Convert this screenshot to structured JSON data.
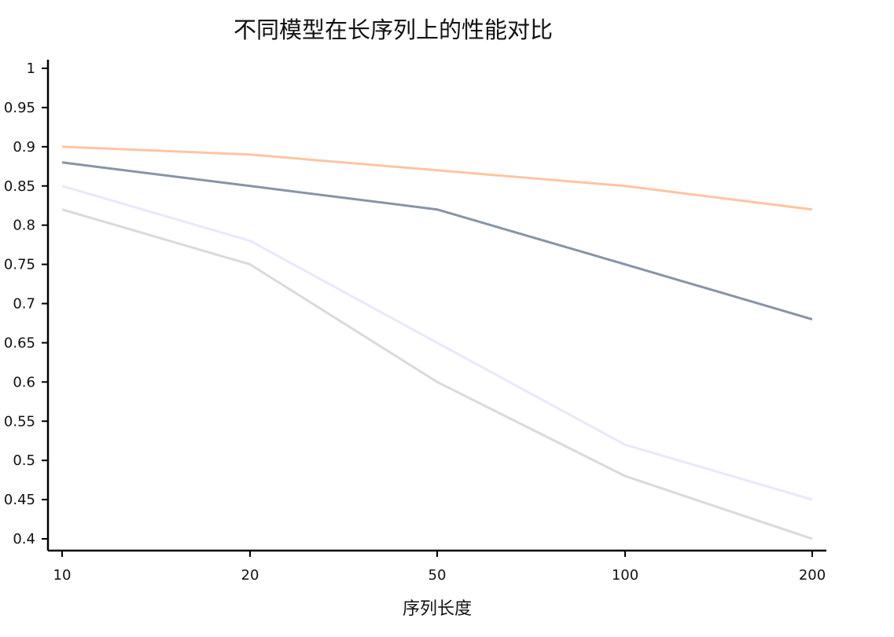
{
  "chart_data": {
    "type": "line",
    "title": "不同模型在长序列上的性能对比",
    "xlabel": "序列长度",
    "ylabel": "",
    "categories": [
      "10",
      "20",
      "50",
      "100",
      "200"
    ],
    "yticks": [
      "1",
      "0.95",
      "0.9",
      "0.85",
      "0.8",
      "0.75",
      "0.7",
      "0.65",
      "0.6",
      "0.55",
      "0.5",
      "0.45",
      "0.4"
    ],
    "ylim": [
      0.4,
      1.0
    ],
    "grid": false,
    "legend": "none",
    "series": [
      {
        "values": [
          0.9,
          0.89,
          0.87,
          0.85,
          0.82
        ],
        "color": "#ffc4a3"
      },
      {
        "values": [
          0.88,
          0.85,
          0.82,
          0.75,
          0.68
        ],
        "color": "#8795a5"
      },
      {
        "values": [
          0.85,
          0.78,
          0.65,
          0.52,
          0.45
        ],
        "color": "#e9e8fb"
      },
      {
        "values": [
          0.82,
          0.75,
          0.6,
          0.48,
          0.4
        ],
        "color": "#dadada"
      }
    ]
  }
}
